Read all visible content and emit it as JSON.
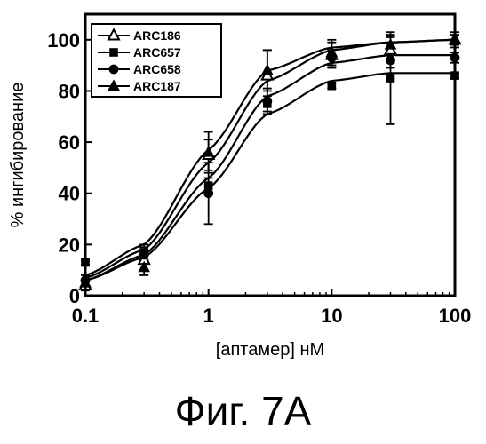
{
  "chart_data": {
    "type": "scatter",
    "xlabel": "[аптамер] нМ",
    "ylabel": "% ингибирование",
    "x_scale": "log",
    "xlim": [
      0.1,
      100
    ],
    "ylim": [
      0,
      110
    ],
    "x_ticks": [
      0.1,
      1,
      10,
      100
    ],
    "x_tick_labels": [
      "0.1",
      "1",
      "10",
      "100"
    ],
    "y_ticks": [
      0,
      20,
      40,
      60,
      80,
      100
    ],
    "y_tick_labels": [
      "0",
      "20",
      "40",
      "60",
      "80",
      "100"
    ],
    "grid": false,
    "legend_position": "top-left",
    "x": [
      0.1,
      0.3,
      1,
      3,
      10,
      30,
      100
    ],
    "series": [
      {
        "name": "ARC186",
        "marker": "open-triangle",
        "values": [
          4,
          14,
          55,
          86,
          94,
          96,
          100
        ],
        "errors": [
          2,
          4,
          6,
          10,
          5,
          5,
          3
        ],
        "fit": [
          7,
          18,
          52,
          84,
          96,
          99,
          100
        ]
      },
      {
        "name": "ARC657",
        "marker": "square",
        "values": [
          13,
          17,
          43,
          75,
          82,
          85,
          86
        ],
        "errors": [
          1,
          3,
          3,
          3,
          1,
          18,
          1
        ],
        "fit": [
          6,
          15,
          42,
          71,
          84,
          87,
          87
        ]
      },
      {
        "name": "ARC658",
        "marker": "circle",
        "values": [
          6,
          16,
          40,
          76,
          93,
          92,
          93
        ],
        "errors": [
          2,
          3,
          12,
          5,
          3,
          3,
          2
        ],
        "fit": [
          6,
          16,
          46,
          78,
          91,
          94,
          94
        ]
      },
      {
        "name": "ARC187",
        "marker": "filled-triangle",
        "values": [
          5,
          11,
          56,
          88,
          95,
          98,
          100
        ],
        "errors": [
          1,
          3,
          8,
          8,
          5,
          4,
          2
        ],
        "fit": [
          8,
          20,
          57,
          88,
          97,
          99,
          100
        ]
      }
    ],
    "caption": "Фиг. 7А"
  }
}
